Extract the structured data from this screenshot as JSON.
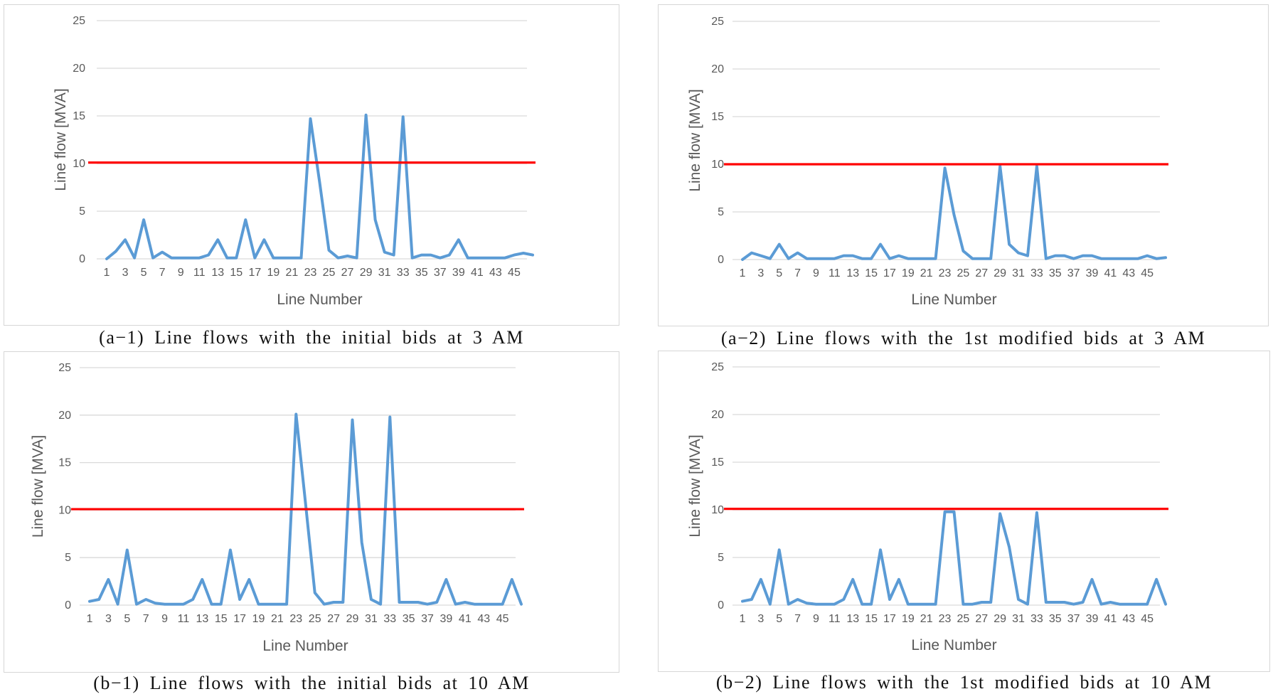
{
  "colors": {
    "series": "#5b9bd5",
    "limit": "#ff0000",
    "grid": "#d9d9d9",
    "text": "#595959"
  },
  "chart_data": [
    {
      "type": "line",
      "caption": "(a−1) Line flows with the initial bids at 3 AM",
      "xlabel": "Line Number",
      "ylabel": "Line flow [MVA]",
      "ylim": [
        0,
        25
      ],
      "yticks": [
        0,
        5,
        10,
        15,
        20,
        25
      ],
      "xtick_labels": [
        "1",
        "3",
        "5",
        "7",
        "9",
        "11",
        "13",
        "15",
        "17",
        "19",
        "21",
        "23",
        "25",
        "27",
        "29",
        "31",
        "33",
        "35",
        "37",
        "39",
        "41",
        "43",
        "45"
      ],
      "grid": true,
      "limit_line": 10.1,
      "series": [
        {
          "values": [
            0,
            0.8,
            2.0,
            0.1,
            4.1,
            0.1,
            0.7,
            0.1,
            0.1,
            0.1,
            0.1,
            0.4,
            2.0,
            0.1,
            0.1,
            4.1,
            0.1,
            2.0,
            0.1,
            0.1,
            0.1,
            0.1,
            14.7,
            8.0,
            0.9,
            0.1,
            0.3,
            0.1,
            15.1,
            4.1,
            0.7,
            0.4,
            14.9,
            0.1,
            0.4,
            0.4,
            0.1,
            0.4,
            2.0,
            0.1,
            0.1,
            0.1,
            0.1,
            0.1,
            0.4,
            0.6,
            0.4
          ]
        }
      ]
    },
    {
      "type": "line",
      "caption": "(a−2) Line flows with the 1st modified bids at 3 AM",
      "xlabel": "Line Number",
      "ylabel": "Line flow [MVA]",
      "ylim": [
        0,
        25
      ],
      "yticks": [
        0,
        5,
        10,
        15,
        20,
        25
      ],
      "xtick_labels": [
        "1",
        "3",
        "5",
        "7",
        "9",
        "11",
        "13",
        "15",
        "17",
        "19",
        "21",
        "23",
        "25",
        "27",
        "29",
        "31",
        "33",
        "35",
        "37",
        "39",
        "41",
        "43",
        "45"
      ],
      "grid": true,
      "limit_line": 10.0,
      "series": [
        {
          "values": [
            0,
            0.7,
            0.4,
            0.1,
            1.6,
            0.1,
            0.7,
            0.1,
            0.1,
            0.1,
            0.1,
            0.4,
            0.4,
            0.1,
            0.1,
            1.6,
            0.1,
            0.4,
            0.1,
            0.1,
            0.1,
            0.1,
            9.6,
            4.7,
            0.9,
            0.1,
            0.1,
            0.1,
            9.8,
            1.6,
            0.7,
            0.4,
            9.8,
            0.1,
            0.4,
            0.4,
            0.1,
            0.4,
            0.4,
            0.1,
            0.1,
            0.1,
            0.1,
            0.1,
            0.4,
            0.1,
            0.2
          ]
        }
      ]
    },
    {
      "type": "line",
      "caption": "(b−1) Line flows with the initial bids at 10 AM",
      "xlabel": "Line Number",
      "ylabel": "Line flow [MVA]",
      "ylim": [
        0,
        25
      ],
      "yticks": [
        0,
        5,
        10,
        15,
        20,
        25
      ],
      "xtick_labels": [
        "1",
        "3",
        "5",
        "7",
        "9",
        "11",
        "13",
        "15",
        "17",
        "19",
        "21",
        "23",
        "25",
        "27",
        "29",
        "31",
        "33",
        "35",
        "37",
        "39",
        "41",
        "43",
        "45"
      ],
      "grid": true,
      "limit_line": 10.1,
      "series": [
        {
          "values": [
            0.4,
            0.6,
            2.7,
            0.1,
            5.8,
            0.1,
            0.6,
            0.2,
            0.1,
            0.1,
            0.1,
            0.6,
            2.7,
            0.1,
            0.1,
            5.8,
            0.6,
            2.7,
            0.1,
            0.1,
            0.1,
            0.1,
            20.1,
            10.8,
            1.3,
            0.1,
            0.3,
            0.3,
            19.5,
            6.6,
            0.6,
            0.1,
            19.8,
            0.3,
            0.3,
            0.3,
            0.1,
            0.3,
            2.7,
            0.1,
            0.3,
            0.1,
            0.1,
            0.1,
            0.1,
            2.7,
            0.1
          ]
        }
      ]
    },
    {
      "type": "line",
      "caption": "(b−2) Line flows with the 1st modified bids at 10 AM",
      "xlabel": "Line Number",
      "ylabel": "Line flow [MVA]",
      "ylim": [
        0,
        25
      ],
      "yticks": [
        0,
        5,
        10,
        15,
        20,
        25
      ],
      "xtick_labels": [
        "1",
        "3",
        "5",
        "7",
        "9",
        "11",
        "13",
        "15",
        "17",
        "19",
        "21",
        "23",
        "25",
        "27",
        "29",
        "31",
        "33",
        "35",
        "37",
        "39",
        "41",
        "43",
        "45"
      ],
      "grid": true,
      "limit_line": 10.1,
      "series": [
        {
          "values": [
            0.4,
            0.6,
            2.7,
            0.1,
            5.8,
            0.1,
            0.6,
            0.2,
            0.1,
            0.1,
            0.1,
            0.6,
            2.7,
            0.1,
            0.1,
            5.8,
            0.6,
            2.7,
            0.1,
            0.1,
            0.1,
            0.1,
            9.8,
            9.8,
            0.1,
            0.1,
            0.3,
            0.3,
            9.6,
            6.1,
            0.6,
            0.1,
            9.7,
            0.3,
            0.3,
            0.3,
            0.1,
            0.3,
            2.7,
            0.1,
            0.3,
            0.1,
            0.1,
            0.1,
            0.1,
            2.7,
            0.1
          ]
        }
      ]
    }
  ]
}
